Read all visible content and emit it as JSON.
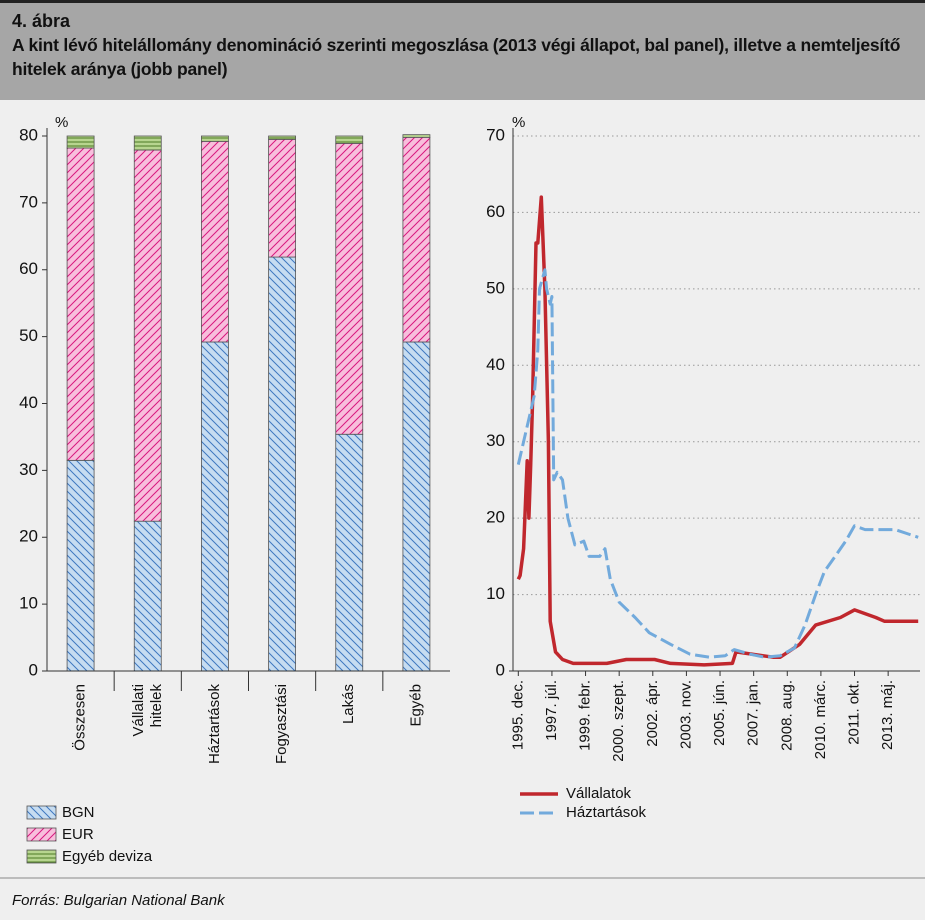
{
  "header": {
    "label": "4. ábra",
    "title": "A kint lévő hitelállomány denomináció szerinti megoszlása (2013 végi állapot, bal panel), illetve a nemteljesítő hitelek aránya (jobb panel)"
  },
  "source": "Forrás: Bulgarian National Bank",
  "chart_data": [
    {
      "type": "bar",
      "stacked": true,
      "y_label": "%",
      "categories": [
        "Összesen",
        "Vállalati\nhitelek",
        "Háztartások",
        "Fogyasztási",
        "Lakás",
        "Egyéb"
      ],
      "series": [
        {
          "name": "BGN",
          "color": "#c6dcf1",
          "values": [
            31.5,
            22.4,
            49.2,
            61.9,
            35.4,
            49.2
          ]
        },
        {
          "name": "EUR",
          "color": "#f8bedc",
          "values": [
            46.7,
            55.5,
            30.0,
            17.6,
            43.5,
            30.6
          ]
        },
        {
          "name": "Egyéb deviza",
          "color": "#b7d58f",
          "values": [
            1.8,
            2.1,
            0.8,
            0.5,
            1.1,
            0.4
          ]
        }
      ],
      "ylim": [
        0,
        80
      ],
      "yticks": [
        0,
        10,
        20,
        30,
        40,
        50,
        60,
        70,
        80
      ]
    },
    {
      "type": "line",
      "y_label": "%",
      "grid": true,
      "series": [
        {
          "name": "Vállalatok",
          "color": "#c0272d",
          "dashed": false,
          "x": [
            "1995-12",
            "1996-01",
            "1996-03",
            "1996-05",
            "1996-06",
            "1996-07",
            "1996-08",
            "1996-10",
            "1996-11",
            "1997-01",
            "1997-03",
            "1997-05",
            "1997-06",
            "1997-09",
            "1998-01",
            "1998-07",
            "2000-02",
            "2001-01",
            "2002-05",
            "2003-02",
            "2004-09",
            "2006-01",
            "2006-03",
            "2007-12",
            "2008-04",
            "2009-03",
            "2009-12",
            "2011-02",
            "2011-10",
            "2012-10",
            "2013-03",
            "2014-03",
            "2014-10"
          ],
          "values": [
            12,
            12.5,
            16,
            27.5,
            20,
            27,
            35,
            56,
            56,
            62,
            50,
            30,
            6.5,
            2.5,
            1.5,
            1,
            1,
            1.5,
            1.5,
            1,
            0.8,
            1,
            2.5,
            1.8,
            1.8,
            3.5,
            6,
            7,
            8,
            7,
            6.5,
            6.5,
            6.5
          ]
        },
        {
          "name": "Háztartások",
          "color": "#72aadc",
          "dashed": true,
          "x": [
            "1995-12",
            "1996-03",
            "1996-06",
            "1996-09",
            "1996-11",
            "1996-12",
            "1997-03",
            "1997-04",
            "1997-06",
            "1997-07",
            "1997-08",
            "1997-10",
            "1998-01",
            "1998-04",
            "1998-08",
            "1999-01",
            "1999-04",
            "1999-10",
            "2000-01",
            "2000-04",
            "2000-09",
            "2001-06",
            "2002-02",
            "2003-02",
            "2004-01",
            "2004-12",
            "2005-09",
            "2006-02",
            "2006-11",
            "2007-07",
            "2008-04",
            "2008-12",
            "2009-06",
            "2009-12",
            "2010-05",
            "2010-11",
            "2011-05",
            "2011-10",
            "2012-04",
            "2013-01",
            "2013-09",
            "2014-10"
          ],
          "values": [
            27,
            30,
            33,
            36,
            42,
            50,
            52.5,
            50,
            48,
            49,
            25,
            26,
            25,
            20,
            16.5,
            17,
            15,
            15,
            16,
            12,
            9,
            7,
            5,
            3.5,
            2.2,
            1.8,
            2,
            2.8,
            2.2,
            1.8,
            2,
            3,
            6,
            10,
            13,
            15,
            17,
            19,
            18.5,
            18.5,
            18.5,
            17.5
          ]
        }
      ],
      "xlim": [
        "1995-09",
        "2014-11"
      ],
      "xticks": [
        {
          "value": "1995-12",
          "label": "1995. dec."
        },
        {
          "value": "1997-07",
          "label": "1997. júl."
        },
        {
          "value": "1999-02",
          "label": "1999. febr."
        },
        {
          "value": "2000-09",
          "label": "2000. szept."
        },
        {
          "value": "2002-04",
          "label": "2002. ápr."
        },
        {
          "value": "2003-11",
          "label": "2003. nov."
        },
        {
          "value": "2005-06",
          "label": "2005. jún."
        },
        {
          "value": "2007-01",
          "label": "2007. jan."
        },
        {
          "value": "2008-08",
          "label": "2008. aug."
        },
        {
          "value": "2010-03",
          "label": "2010. márc."
        },
        {
          "value": "2011-10",
          "label": "2011. okt."
        },
        {
          "value": "2013-05",
          "label": "2013. máj."
        }
      ],
      "ylim": [
        0,
        70
      ],
      "yticks": [
        0,
        10,
        20,
        30,
        40,
        50,
        60,
        70
      ]
    }
  ]
}
